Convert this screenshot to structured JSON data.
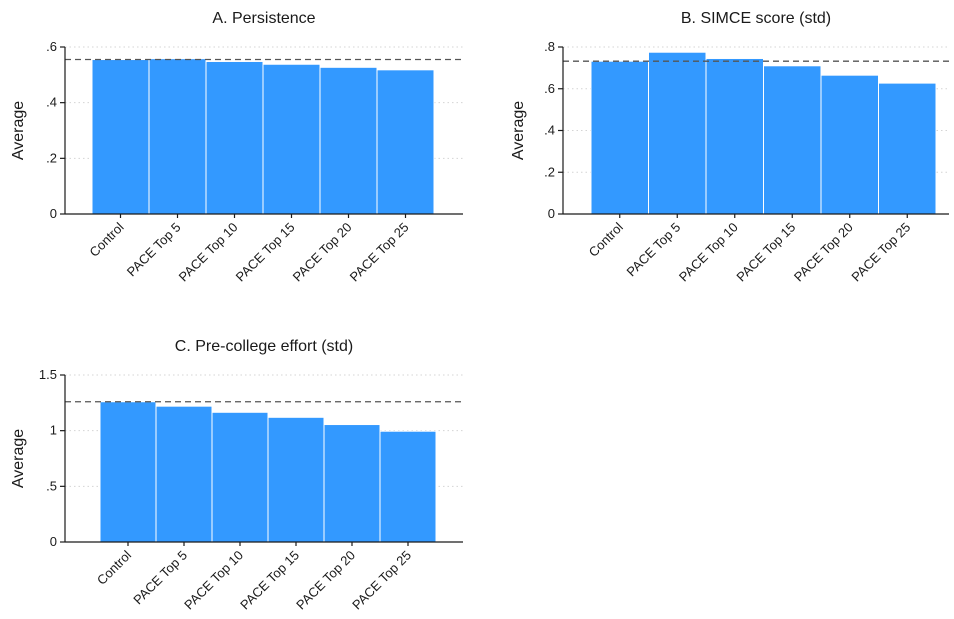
{
  "chart_data": [
    {
      "type": "bar",
      "title": "A. Persistence",
      "ylabel": "Average",
      "xlabel": "",
      "categories": [
        "Control",
        "PACE Top 5",
        "PACE Top 10",
        "PACE Top 15",
        "PACE Top 20",
        "PACE Top 25"
      ],
      "values": [
        0.555,
        0.558,
        0.548,
        0.538,
        0.527,
        0.518
      ],
      "ylim": [
        0,
        0.6
      ],
      "yticks": [
        0,
        0.2,
        0.4,
        0.6
      ],
      "ytick_labels": [
        "0",
        ".2",
        ".4",
        ".6"
      ],
      "reference_line": 0.555,
      "grid": true,
      "bar_color": "#3399ff"
    },
    {
      "type": "bar",
      "title": "B. SIMCE score (std)",
      "ylabel": "Average",
      "xlabel": "",
      "categories": [
        "Control",
        "PACE Top 5",
        "PACE Top 10",
        "PACE Top 15",
        "PACE Top 20",
        "PACE Top 25"
      ],
      "values": [
        0.732,
        0.775,
        0.745,
        0.71,
        0.665,
        0.627
      ],
      "ylim": [
        0,
        0.8
      ],
      "yticks": [
        0,
        0.2,
        0.4,
        0.6,
        0.8
      ],
      "ytick_labels": [
        "0",
        ".2",
        ".4",
        ".6",
        ".8"
      ],
      "reference_line": 0.732,
      "grid": true,
      "bar_color": "#3399ff"
    },
    {
      "type": "bar",
      "title": "C. Pre-college effort (std)",
      "ylabel": "Average",
      "xlabel": "",
      "categories": [
        "Control",
        "PACE Top 5",
        "PACE Top 10",
        "PACE Top 15",
        "PACE Top 20",
        "PACE Top 25"
      ],
      "values": [
        1.26,
        1.22,
        1.165,
        1.12,
        1.055,
        0.995
      ],
      "ylim": [
        0,
        1.5
      ],
      "yticks": [
        0,
        0.5,
        1,
        1.5
      ],
      "ytick_labels": [
        "0",
        ".5",
        "1",
        "1.5"
      ],
      "reference_line": 1.26,
      "grid": true,
      "bar_color": "#3399ff"
    }
  ]
}
